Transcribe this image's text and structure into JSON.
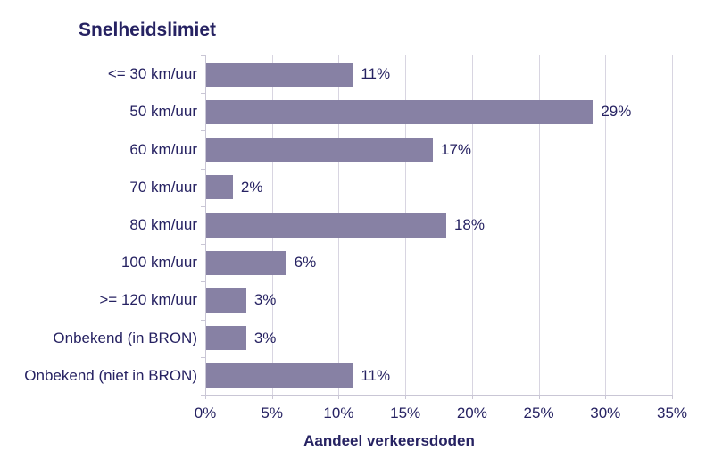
{
  "chart_data": {
    "type": "bar",
    "orientation": "horizontal",
    "title": "Snelheidslimiet",
    "xlabel": "Aandeel verkeersdoden",
    "categories": [
      "<= 30 km/uur",
      "50 km/uur",
      "60 km/uur",
      "70 km/uur",
      "80 km/uur",
      "100 km/uur",
      ">= 120 km/uur",
      "Onbekend (in BRON)",
      "Onbekend (niet in BRON)"
    ],
    "values": [
      11,
      29,
      17,
      2,
      18,
      6,
      3,
      3,
      11
    ],
    "value_labels": [
      "11%",
      "29%",
      "17%",
      "2%",
      "18%",
      "6%",
      "3%",
      "3%",
      "11%"
    ],
    "x_tick_values": [
      0,
      5,
      10,
      15,
      20,
      25,
      30,
      35
    ],
    "x_tick_labels": [
      "0%",
      "5%",
      "10%",
      "15%",
      "20%",
      "25%",
      "30%",
      "35%"
    ],
    "xlim": [
      0,
      35
    ],
    "grid": true,
    "legend": "none",
    "colors": {
      "bar": "#8781A4",
      "text": "#262262",
      "gridline": "#D8D5E1",
      "axis": "#C9C6D5",
      "background": "#FFFFFF"
    }
  }
}
